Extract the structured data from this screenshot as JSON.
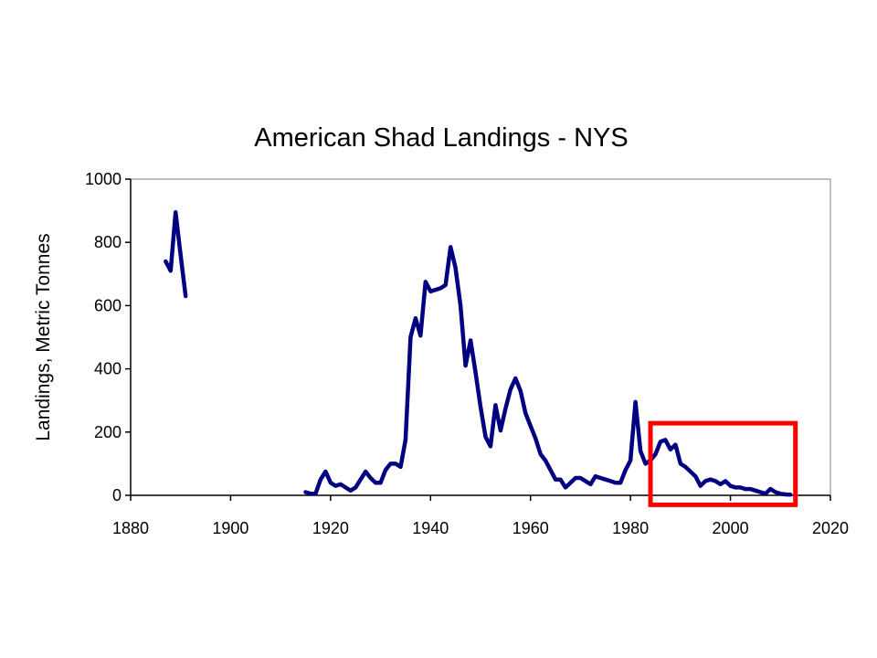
{
  "chart_data": {
    "type": "line",
    "title": "American Shad Landings - NYS",
    "xlabel": "",
    "ylabel": "Landings, Metric Tonnes",
    "xlim": [
      1880,
      2020
    ],
    "ylim": [
      0,
      1000
    ],
    "x_ticks": [
      "1880",
      "1900",
      "1920",
      "1940",
      "1960",
      "1980",
      "2000",
      "2020"
    ],
    "y_ticks": [
      "0",
      "200",
      "400",
      "600",
      "800",
      "1000"
    ],
    "grid": false,
    "legend": "none",
    "series": [
      {
        "color": "#000080",
        "segments": [
          [
            [
              1887,
              740
            ],
            [
              1888,
              710
            ],
            [
              1889,
              895
            ],
            [
              1890,
              760
            ],
            [
              1891,
              630
            ]
          ],
          [
            [
              1915,
              10
            ],
            [
              1916,
              5
            ],
            [
              1917,
              5
            ],
            [
              1918,
              50
            ],
            [
              1919,
              75
            ],
            [
              1920,
              40
            ],
            [
              1921,
              30
            ],
            [
              1922,
              35
            ],
            [
              1923,
              25
            ],
            [
              1924,
              15
            ],
            [
              1925,
              25
            ],
            [
              1926,
              50
            ],
            [
              1927,
              75
            ],
            [
              1928,
              55
            ],
            [
              1929,
              40
            ],
            [
              1930,
              40
            ],
            [
              1931,
              80
            ],
            [
              1932,
              100
            ],
            [
              1933,
              100
            ],
            [
              1934,
              90
            ],
            [
              1935,
              175
            ],
            [
              1936,
              500
            ],
            [
              1937,
              560
            ],
            [
              1938,
              505
            ],
            [
              1939,
              675
            ],
            [
              1940,
              645
            ],
            [
              1941,
              650
            ],
            [
              1942,
              655
            ],
            [
              1943,
              665
            ],
            [
              1944,
              785
            ],
            [
              1945,
              720
            ],
            [
              1946,
              600
            ],
            [
              1947,
              410
            ],
            [
              1948,
              490
            ],
            [
              1949,
              390
            ],
            [
              1950,
              280
            ],
            [
              1951,
              185
            ],
            [
              1952,
              155
            ],
            [
              1953,
              285
            ],
            [
              1954,
              205
            ],
            [
              1955,
              275
            ],
            [
              1956,
              335
            ],
            [
              1957,
              370
            ],
            [
              1958,
              330
            ],
            [
              1959,
              260
            ],
            [
              1960,
              220
            ],
            [
              1961,
              180
            ],
            [
              1962,
              130
            ],
            [
              1963,
              110
            ],
            [
              1964,
              80
            ],
            [
              1965,
              50
            ],
            [
              1966,
              50
            ],
            [
              1967,
              25
            ],
            [
              1968,
              40
            ],
            [
              1969,
              55
            ],
            [
              1970,
              55
            ],
            [
              1971,
              45
            ],
            [
              1972,
              35
            ],
            [
              1973,
              60
            ],
            [
              1974,
              55
            ],
            [
              1975,
              50
            ],
            [
              1976,
              45
            ],
            [
              1977,
              40
            ],
            [
              1978,
              40
            ],
            [
              1979,
              80
            ],
            [
              1980,
              110
            ],
            [
              1981,
              295
            ],
            [
              1982,
              140
            ],
            [
              1983,
              100
            ],
            [
              1984,
              110
            ],
            [
              1985,
              130
            ],
            [
              1986,
              170
            ],
            [
              1987,
              175
            ],
            [
              1988,
              145
            ],
            [
              1989,
              160
            ],
            [
              1990,
              100
            ],
            [
              1991,
              90
            ],
            [
              1992,
              75
            ],
            [
              1993,
              60
            ],
            [
              1994,
              30
            ],
            [
              1995,
              45
            ],
            [
              1996,
              50
            ],
            [
              1997,
              45
            ],
            [
              1998,
              35
            ],
            [
              1999,
              45
            ],
            [
              2000,
              30
            ],
            [
              2001,
              25
            ],
            [
              2002,
              25
            ],
            [
              2003,
              20
            ],
            [
              2004,
              20
            ],
            [
              2005,
              15
            ],
            [
              2006,
              10
            ],
            [
              2007,
              5
            ],
            [
              2008,
              20
            ],
            [
              2009,
              10
            ],
            [
              2010,
              5
            ],
            [
              2011,
              3
            ],
            [
              2012,
              2
            ]
          ]
        ]
      }
    ],
    "highlight_box": {
      "x_range": [
        1984,
        2013
      ],
      "y_range": [
        -30,
        228
      ],
      "color": "#ff0000"
    }
  }
}
